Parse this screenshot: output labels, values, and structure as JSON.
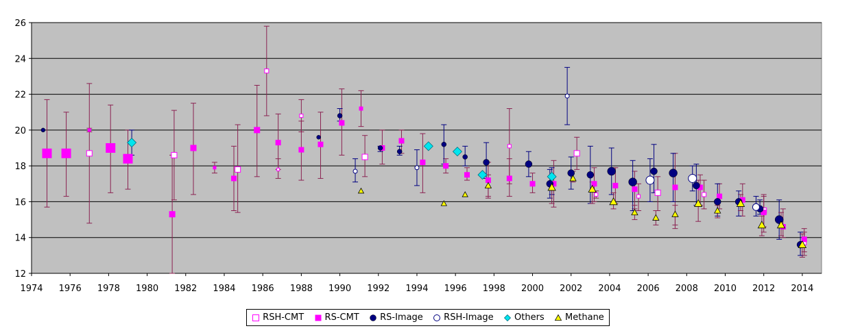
{
  "chart_data": {
    "type": "scatter",
    "title": "",
    "xlabel": "",
    "ylabel": "",
    "xlim": [
      1974,
      2015
    ],
    "ylim": [
      12,
      26
    ],
    "x_ticks": [
      "1974",
      "1976",
      "1978",
      "1980",
      "1982",
      "1984",
      "1986",
      "1988",
      "1990",
      "1992",
      "1994",
      "1996",
      "1998",
      "2000",
      "2002",
      "2004",
      "2006",
      "2008",
      "2010",
      "2012",
      "2014"
    ],
    "y_ticks": [
      "12",
      "14",
      "16",
      "18",
      "20",
      "22",
      "24",
      "26"
    ],
    "grid": "horizontal",
    "background": "#c0c0c0",
    "error_bar_colors": {
      "RSH-CMT": "#8b2252",
      "RS-CMT": "#8b2252",
      "RS-Image": "#000080",
      "RSH-Image": "#000080",
      "Others": "#000080",
      "Methane": "#8b2252"
    },
    "legend_position": "bottom",
    "series": [
      {
        "name": "RSH-CMT",
        "marker": "open-square",
        "color": "#ff00ff",
        "points": [
          {
            "x": 1977.0,
            "y": 18.7,
            "lo": 14.8,
            "hi": 22.6,
            "s": 8
          },
          {
            "x": 1981.4,
            "y": 18.6,
            "lo": 16.1,
            "hi": 21.1,
            "s": 8
          },
          {
            "x": 1984.7,
            "y": 17.8,
            "lo": 15.4,
            "hi": 20.3,
            "s": 8
          },
          {
            "x": 1986.2,
            "y": 23.3,
            "lo": 20.8,
            "hi": 25.8,
            "s": 6
          },
          {
            "x": 1986.8,
            "y": 17.8,
            "lo": 17.3,
            "hi": 18.4,
            "s": 4
          },
          {
            "x": 1988.0,
            "y": 20.8,
            "lo": 19.9,
            "hi": 21.7,
            "s": 5
          },
          {
            "x": 1991.3,
            "y": 18.5,
            "lo": 17.4,
            "hi": 19.7,
            "s": 8
          },
          {
            "x": 1998.8,
            "y": 19.1,
            "lo": 17.0,
            "hi": 21.2,
            "s": 5
          },
          {
            "x": 2002.3,
            "y": 18.7,
            "lo": 17.8,
            "hi": 19.6,
            "s": 8
          },
          {
            "x": 2003.3,
            "y": 16.4,
            "lo": 16.2,
            "hi": 16.6,
            "s": 5
          },
          {
            "x": 2005.5,
            "y": 16.3,
            "lo": 15.5,
            "hi": 17.0,
            "s": 5
          },
          {
            "x": 2006.5,
            "y": 16.5,
            "lo": 15.5,
            "hi": 17.4,
            "s": 8
          },
          {
            "x": 2008.9,
            "y": 16.4,
            "lo": 15.6,
            "hi": 17.2,
            "s": 6
          },
          {
            "x": 2012.0,
            "y": 15.5,
            "lo": 14.6,
            "hi": 16.3,
            "s": 8
          },
          {
            "x": 2014.1,
            "y": 13.7,
            "lo": 13.0,
            "hi": 14.3,
            "s": 6
          }
        ]
      },
      {
        "name": "RS-CMT",
        "marker": "square",
        "color": "#ff00ff",
        "points": [
          {
            "x": 1974.8,
            "y": 18.7,
            "lo": 15.7,
            "hi": 21.7,
            "s": 14
          },
          {
            "x": 1975.8,
            "y": 18.7,
            "lo": 16.3,
            "hi": 21.0,
            "s": 14
          },
          {
            "x": 1977.0,
            "y": 20.0,
            "lo": 19.9,
            "hi": 20.1,
            "s": 5
          },
          {
            "x": 1978.1,
            "y": 19.0,
            "lo": 16.5,
            "hi": 21.4,
            "s": 14
          },
          {
            "x": 1979.0,
            "y": 18.4,
            "lo": 16.7,
            "hi": 20.0,
            "s": 14
          },
          {
            "x": 1981.3,
            "y": 15.3,
            "lo": 12.0,
            "hi": 18.6,
            "s": 9
          },
          {
            "x": 1982.4,
            "y": 19.0,
            "lo": 16.4,
            "hi": 21.5,
            "s": 9
          },
          {
            "x": 1983.5,
            "y": 17.9,
            "lo": 17.6,
            "hi": 18.2,
            "s": 5
          },
          {
            "x": 1984.5,
            "y": 17.3,
            "lo": 15.5,
            "hi": 19.1,
            "s": 8
          },
          {
            "x": 1985.7,
            "y": 20.0,
            "lo": 17.4,
            "hi": 22.5,
            "s": 9
          },
          {
            "x": 1986.8,
            "y": 19.3,
            "lo": 17.8,
            "hi": 20.9,
            "s": 8
          },
          {
            "x": 1988.0,
            "y": 18.9,
            "lo": 17.2,
            "hi": 20.5,
            "s": 8
          },
          {
            "x": 1989.0,
            "y": 19.2,
            "lo": 17.3,
            "hi": 21.0,
            "s": 8
          },
          {
            "x": 1990.1,
            "y": 20.4,
            "lo": 18.6,
            "hi": 22.3,
            "s": 8
          },
          {
            "x": 1991.1,
            "y": 21.2,
            "lo": 20.2,
            "hi": 22.2,
            "s": 6
          },
          {
            "x": 1992.2,
            "y": 19.0,
            "lo": 18.1,
            "hi": 20.0,
            "s": 8
          },
          {
            "x": 1993.2,
            "y": 19.4,
            "lo": 18.7,
            "hi": 20.0,
            "s": 8
          },
          {
            "x": 1994.3,
            "y": 18.2,
            "lo": 16.5,
            "hi": 19.8,
            "s": 8
          },
          {
            "x": 1995.5,
            "y": 18.0,
            "lo": 17.6,
            "hi": 18.4,
            "s": 8
          },
          {
            "x": 1996.6,
            "y": 17.5,
            "lo": 17.2,
            "hi": 17.9,
            "s": 8
          },
          {
            "x": 1997.7,
            "y": 17.2,
            "lo": 16.2,
            "hi": 18.2,
            "s": 8
          },
          {
            "x": 1998.8,
            "y": 17.3,
            "lo": 16.3,
            "hi": 18.4,
            "s": 8
          },
          {
            "x": 2000.0,
            "y": 17.0,
            "lo": 16.5,
            "hi": 17.6,
            "s": 8
          },
          {
            "x": 2001.1,
            "y": 17.0,
            "lo": 15.7,
            "hi": 18.3,
            "s": 8
          },
          {
            "x": 2003.2,
            "y": 17.0,
            "lo": 16.0,
            "hi": 17.9,
            "s": 8
          },
          {
            "x": 2004.3,
            "y": 16.9,
            "lo": 15.9,
            "hi": 17.9,
            "s": 8
          },
          {
            "x": 2005.3,
            "y": 16.7,
            "lo": 15.6,
            "hi": 17.7,
            "s": 8
          },
          {
            "x": 2007.4,
            "y": 16.8,
            "lo": 14.5,
            "hi": 18.7,
            "s": 8
          },
          {
            "x": 2008.7,
            "y": 16.8,
            "lo": 15.8,
            "hi": 17.5,
            "s": 8
          },
          {
            "x": 2009.7,
            "y": 16.3,
            "lo": 15.6,
            "hi": 17.0,
            "s": 8
          },
          {
            "x": 2010.9,
            "y": 16.1,
            "lo": 15.2,
            "hi": 17.0,
            "s": 8
          },
          {
            "x": 2012.0,
            "y": 15.4,
            "lo": 14.3,
            "hi": 16.4,
            "s": 8
          },
          {
            "x": 2013.0,
            "y": 14.6,
            "lo": 14.0,
            "hi": 15.6,
            "s": 8
          },
          {
            "x": 2014.1,
            "y": 13.9,
            "lo": 13.2,
            "hi": 14.5,
            "s": 8
          }
        ]
      },
      {
        "name": "RS-Image",
        "marker": "circle",
        "color": "#000080",
        "points": [
          {
            "x": 1974.6,
            "y": 20.0,
            "lo": 20.0,
            "hi": 20.0,
            "s": 6
          },
          {
            "x": 1988.9,
            "y": 19.6,
            "lo": 19.6,
            "hi": 19.6,
            "s": 6
          },
          {
            "x": 1990.0,
            "y": 20.8,
            "lo": 20.5,
            "hi": 21.2,
            "s": 7
          },
          {
            "x": 1992.1,
            "y": 19.0,
            "lo": 18.8,
            "hi": 19.1,
            "s": 7
          },
          {
            "x": 1993.1,
            "y": 18.8,
            "lo": 18.6,
            "hi": 19.1,
            "s": 7
          },
          {
            "x": 1995.4,
            "y": 19.2,
            "lo": 18.1,
            "hi": 20.3,
            "s": 7
          },
          {
            "x": 1996.5,
            "y": 18.5,
            "lo": 18.0,
            "hi": 19.1,
            "s": 7
          },
          {
            "x": 1997.6,
            "y": 18.2,
            "lo": 17.3,
            "hi": 19.3,
            "s": 9
          },
          {
            "x": 1999.8,
            "y": 18.1,
            "lo": 17.4,
            "hi": 18.8,
            "s": 10
          },
          {
            "x": 2000.9,
            "y": 17.0,
            "lo": 16.2,
            "hi": 17.8,
            "s": 10
          },
          {
            "x": 2002.0,
            "y": 17.6,
            "lo": 16.7,
            "hi": 18.5,
            "s": 10
          },
          {
            "x": 2003.0,
            "y": 17.5,
            "lo": 15.9,
            "hi": 19.1,
            "s": 10
          },
          {
            "x": 2004.1,
            "y": 17.7,
            "lo": 16.4,
            "hi": 19.0,
            "s": 12
          },
          {
            "x": 2005.2,
            "y": 17.1,
            "lo": 15.5,
            "hi": 18.3,
            "s": 12
          },
          {
            "x": 2006.3,
            "y": 17.7,
            "lo": 16.5,
            "hi": 19.2,
            "s": 10
          },
          {
            "x": 2007.3,
            "y": 17.6,
            "lo": 16.0,
            "hi": 18.7,
            "s": 12
          },
          {
            "x": 2008.5,
            "y": 16.9,
            "lo": 15.8,
            "hi": 18.1,
            "s": 10
          },
          {
            "x": 2009.6,
            "y": 16.0,
            "lo": 15.2,
            "hi": 17.0,
            "s": 10
          },
          {
            "x": 2010.7,
            "y": 16.0,
            "lo": 15.2,
            "hi": 16.6,
            "s": 10
          },
          {
            "x": 2011.8,
            "y": 15.6,
            "lo": 15.3,
            "hi": 16.1,
            "s": 10
          },
          {
            "x": 2012.8,
            "y": 15.0,
            "lo": 13.9,
            "hi": 16.1,
            "s": 12
          },
          {
            "x": 2013.9,
            "y": 13.6,
            "lo": 13.0,
            "hi": 14.3,
            "s": 10
          }
        ]
      },
      {
        "name": "RSH-Image",
        "marker": "open-circle",
        "color": "#000080",
        "points": [
          {
            "x": 1990.8,
            "y": 17.7,
            "lo": 17.1,
            "hi": 18.4,
            "s": 6
          },
          {
            "x": 1994.0,
            "y": 17.9,
            "lo": 16.9,
            "hi": 18.9,
            "s": 6
          },
          {
            "x": 2001.8,
            "y": 21.9,
            "lo": 20.3,
            "hi": 23.5,
            "s": 6
          },
          {
            "x": 2006.1,
            "y": 17.2,
            "lo": 16.0,
            "hi": 18.4,
            "s": 12
          },
          {
            "x": 2008.3,
            "y": 17.3,
            "lo": 16.6,
            "hi": 18.0,
            "s": 12
          },
          {
            "x": 2011.6,
            "y": 15.7,
            "lo": 15.2,
            "hi": 16.3,
            "s": 10
          }
        ]
      },
      {
        "name": "Others",
        "marker": "diamond",
        "color": "#00e5ee",
        "points": [
          {
            "x": 1979.2,
            "y": 19.3,
            "lo": 18.6,
            "hi": 20.0,
            "s": 13
          },
          {
            "x": 1994.6,
            "y": 19.1,
            "lo": 19.1,
            "hi": 19.1,
            "s": 13
          },
          {
            "x": 1996.1,
            "y": 18.8,
            "lo": 18.8,
            "hi": 18.8,
            "s": 13
          },
          {
            "x": 1997.4,
            "y": 17.5,
            "lo": 17.5,
            "hi": 17.5,
            "s": 13
          },
          {
            "x": 2001.0,
            "y": 17.4,
            "lo": 16.4,
            "hi": 17.9,
            "s": 13
          }
        ]
      },
      {
        "name": "Methane",
        "marker": "triangle",
        "color": "#ffff00",
        "points": [
          {
            "x": 1991.1,
            "y": 16.6,
            "lo": 16.6,
            "hi": 16.6,
            "s": 8
          },
          {
            "x": 1995.4,
            "y": 15.9,
            "lo": 15.9,
            "hi": 15.9,
            "s": 8
          },
          {
            "x": 1996.5,
            "y": 16.4,
            "lo": 16.4,
            "hi": 16.4,
            "s": 8
          },
          {
            "x": 1997.7,
            "y": 16.9,
            "lo": 16.3,
            "hi": 17.5,
            "s": 9
          },
          {
            "x": 2001.0,
            "y": 16.8,
            "lo": 15.9,
            "hi": 17.3,
            "s": 11
          },
          {
            "x": 2002.1,
            "y": 17.3,
            "lo": 17.1,
            "hi": 17.7,
            "s": 9
          },
          {
            "x": 2003.1,
            "y": 16.7,
            "lo": 15.9,
            "hi": 17.1,
            "s": 11
          },
          {
            "x": 2004.2,
            "y": 16.0,
            "lo": 15.6,
            "hi": 16.5,
            "s": 11
          },
          {
            "x": 2005.3,
            "y": 15.4,
            "lo": 15.0,
            "hi": 15.8,
            "s": 9
          },
          {
            "x": 2006.4,
            "y": 15.1,
            "lo": 14.7,
            "hi": 15.5,
            "s": 9
          },
          {
            "x": 2007.4,
            "y": 15.3,
            "lo": 14.7,
            "hi": 15.8,
            "s": 9
          },
          {
            "x": 2008.6,
            "y": 15.9,
            "lo": 14.9,
            "hi": 17.2,
            "s": 11
          },
          {
            "x": 2009.6,
            "y": 15.5,
            "lo": 15.1,
            "hi": 15.8,
            "s": 9
          },
          {
            "x": 2010.8,
            "y": 15.9,
            "lo": 15.5,
            "hi": 16.4,
            "s": 11
          },
          {
            "x": 2011.9,
            "y": 14.7,
            "lo": 14.1,
            "hi": 15.2,
            "s": 11
          },
          {
            "x": 2012.9,
            "y": 14.7,
            "lo": 14.1,
            "hi": 15.4,
            "s": 11
          },
          {
            "x": 2014.0,
            "y": 13.6,
            "lo": 12.9,
            "hi": 14.2,
            "s": 11
          }
        ]
      }
    ]
  }
}
